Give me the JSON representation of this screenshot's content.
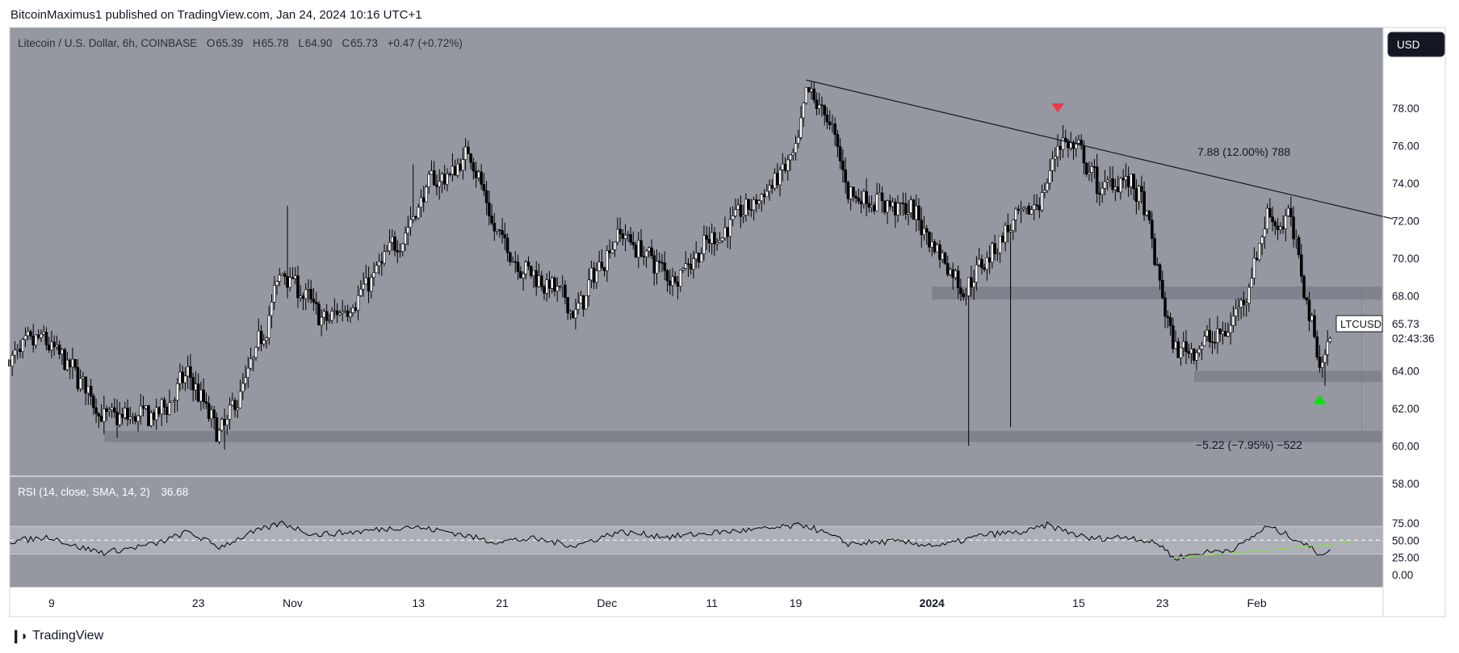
{
  "header": {
    "publisher_line": "BitcoinMaximus1 published on TradingView.com, Jan 24, 2024 10:16 UTC+1"
  },
  "footer": {
    "brand": "TradingView"
  },
  "legend": {
    "symbol": "Litecoin / U.S. Dollar, 6h, COINBASE",
    "o_label": "O",
    "o": "65.39",
    "h_label": "H",
    "h": "65.78",
    "l_label": "L",
    "l": "64.90",
    "c_label": "C",
    "c": "65.73",
    "change": "+0.47 (+0.72%)"
  },
  "currency_button": "USD",
  "last_price": {
    "ticker": "LTCUSD",
    "price": "65.73",
    "countdown": "02:43:36"
  },
  "annotations": {
    "upper_measure": "7.88 (12.00%) 788",
    "lower_measure": "−5.22 (−7.95%) −522"
  },
  "rsi_legend": {
    "label": "RSI (14, close, SMA, 14, 2)",
    "value": "36.68"
  },
  "colors": {
    "chart_bg": "#9598a1",
    "rsi_band": "#aeb0b8",
    "support_zone": "#80838d",
    "candle": "#000000",
    "red_marker": "#f23645",
    "green_marker": "#00e600",
    "rsi_trend": "#8bd85f"
  },
  "chart_data": [
    {
      "type": "candlestick",
      "title": "Litecoin / U.S. Dollar, 6h, COINBASE",
      "ylim": [
        57,
        81
      ],
      "y_ticks": [
        "78.00",
        "76.00",
        "74.00",
        "72.00",
        "70.00",
        "68.00",
        "66.00",
        "64.00",
        "62.00",
        "60.00",
        "58.00"
      ],
      "x_ticks": [
        "9",
        "23",
        "Nov",
        "13",
        "21",
        "Dec",
        "11",
        "19",
        "2024",
        "15",
        "23",
        "Feb"
      ],
      "x_range": [
        "2023-10-05",
        "2024-02-06"
      ],
      "price_anchors": [
        {
          "date": "2023-10-05",
          "price": 64.6
        },
        {
          "date": "2023-10-08",
          "price": 65.7
        },
        {
          "date": "2023-10-12",
          "price": 63.3
        },
        {
          "date": "2023-10-14",
          "price": 61.4
        },
        {
          "date": "2023-10-19",
          "price": 61.6
        },
        {
          "date": "2023-10-22",
          "price": 63.8
        },
        {
          "date": "2023-10-24",
          "price": 61.5
        },
        {
          "date": "2023-10-25",
          "price": 60.5
        },
        {
          "date": "2023-10-28",
          "price": 64.2
        },
        {
          "date": "2023-10-31",
          "price": 69.5
        },
        {
          "date": "2023-11-02",
          "price": 68.0
        },
        {
          "date": "2023-11-04",
          "price": 66.5
        },
        {
          "date": "2023-11-08",
          "price": 68.5
        },
        {
          "date": "2023-11-12",
          "price": 71.8
        },
        {
          "date": "2023-11-14",
          "price": 74.0
        },
        {
          "date": "2023-11-16",
          "price": 74.5
        },
        {
          "date": "2023-11-18",
          "price": 75.8
        },
        {
          "date": "2023-11-20",
          "price": 71.5
        },
        {
          "date": "2023-11-23",
          "price": 69.5
        },
        {
          "date": "2023-11-25",
          "price": 68.8
        },
        {
          "date": "2023-11-28",
          "price": 67.0
        },
        {
          "date": "2023-11-30",
          "price": 69.5
        },
        {
          "date": "2023-12-02",
          "price": 71.5
        },
        {
          "date": "2023-12-05",
          "price": 70.0
        },
        {
          "date": "2023-12-07",
          "price": 69.0
        },
        {
          "date": "2023-12-10",
          "price": 70.5
        },
        {
          "date": "2023-12-13",
          "price": 72.0
        },
        {
          "date": "2023-12-16",
          "price": 73.5
        },
        {
          "date": "2023-12-19",
          "price": 75.5
        },
        {
          "date": "2023-12-20",
          "price": 78.8
        },
        {
          "date": "2023-12-22",
          "price": 77.5
        },
        {
          "date": "2023-12-24",
          "price": 73.5
        },
        {
          "date": "2023-12-27",
          "price": 73.0
        },
        {
          "date": "2023-12-30",
          "price": 72.5
        },
        {
          "date": "2024-01-02",
          "price": 70.0
        },
        {
          "date": "2024-01-04",
          "price": 68.3
        },
        {
          "date": "2024-01-06",
          "price": 70.0
        },
        {
          "date": "2024-01-08",
          "price": 71.5
        },
        {
          "date": "2024-01-10",
          "price": 72.2
        },
        {
          "date": "2024-01-12",
          "price": 74.0
        },
        {
          "date": "2024-01-13",
          "price": 76.5
        },
        {
          "date": "2024-01-15",
          "price": 75.5
        },
        {
          "date": "2024-01-17",
          "price": 73.5
        },
        {
          "date": "2024-01-19",
          "price": 74.5
        },
        {
          "date": "2024-01-21",
          "price": 73.0
        },
        {
          "date": "2024-01-24",
          "price": 65.0
        },
        {
          "date": "2024-01-27",
          "price": 65.5
        },
        {
          "date": "2024-01-29",
          "price": 66.0
        },
        {
          "date": "2024-01-31",
          "price": 68.5
        },
        {
          "date": "2024-02-02",
          "price": 72.5
        },
        {
          "date": "2024-02-03",
          "price": 71.8
        },
        {
          "date": "2024-02-04",
          "price": 72.2
        },
        {
          "date": "2024-02-06",
          "price": 67.0
        },
        {
          "date": "2024-02-07",
          "price": 64.3
        },
        {
          "date": "2024-02-08",
          "price": 65.7
        }
      ],
      "spikes": [
        {
          "date": "2023-10-25",
          "low": 59.8
        },
        {
          "date": "2023-10-31",
          "high": 72.8
        },
        {
          "date": "2023-11-12",
          "high": 75.0
        },
        {
          "date": "2023-12-20",
          "high": 79.4
        },
        {
          "date": "2024-01-04",
          "low": 60.0
        },
        {
          "date": "2024-01-08",
          "low": 61.0
        },
        {
          "date": "2024-01-13",
          "high": 77.1
        },
        {
          "date": "2024-02-07",
          "low": 63.2
        }
      ],
      "support_zones": [
        {
          "from_date": "2023-10-14",
          "low": 60.2,
          "high": 60.8
        },
        {
          "from_date": "2024-01-01",
          "low": 67.8,
          "high": 68.5
        },
        {
          "from_date": "2024-01-26",
          "low": 63.4,
          "high": 64.0
        }
      ],
      "trendline": [
        {
          "date": "2023-12-20",
          "price": 79.5
        },
        {
          "date": "2024-02-14",
          "price": 72.1
        }
      ],
      "markers": [
        {
          "type": "down-triangle",
          "color": "red",
          "date": "2024-01-13",
          "price": 78.0
        },
        {
          "type": "up-triangle",
          "color": "green",
          "date": "2024-02-07",
          "price": 62.5
        }
      ],
      "last_price": 65.73
    },
    {
      "type": "line",
      "title": "RSI (14, close, SMA, 14, 2)",
      "ylim": [
        0,
        80
      ],
      "y_ticks": [
        "75.00",
        "50.00",
        "25.00",
        "0.00"
      ],
      "band": [
        30,
        70
      ],
      "midline": 50,
      "rsi_anchors": [
        {
          "date": "2023-10-05",
          "value": 48
        },
        {
          "date": "2023-10-09",
          "value": 55
        },
        {
          "date": "2023-10-11",
          "value": 42
        },
        {
          "date": "2023-10-14",
          "value": 32
        },
        {
          "date": "2023-10-19",
          "value": 45
        },
        {
          "date": "2023-10-22",
          "value": 62
        },
        {
          "date": "2023-10-25",
          "value": 40
        },
        {
          "date": "2023-10-28",
          "value": 60
        },
        {
          "date": "2023-10-31",
          "value": 75
        },
        {
          "date": "2023-11-03",
          "value": 58
        },
        {
          "date": "2023-11-07",
          "value": 62
        },
        {
          "date": "2023-11-12",
          "value": 70
        },
        {
          "date": "2023-11-16",
          "value": 62
        },
        {
          "date": "2023-11-20",
          "value": 48
        },
        {
          "date": "2023-11-24",
          "value": 52
        },
        {
          "date": "2023-11-28",
          "value": 42
        },
        {
          "date": "2023-12-02",
          "value": 62
        },
        {
          "date": "2023-12-07",
          "value": 55
        },
        {
          "date": "2023-12-12",
          "value": 62
        },
        {
          "date": "2023-12-16",
          "value": 66
        },
        {
          "date": "2023-12-20",
          "value": 72
        },
        {
          "date": "2023-12-24",
          "value": 45
        },
        {
          "date": "2023-12-28",
          "value": 48
        },
        {
          "date": "2024-01-02",
          "value": 42
        },
        {
          "date": "2024-01-06",
          "value": 58
        },
        {
          "date": "2024-01-10",
          "value": 62
        },
        {
          "date": "2024-01-12",
          "value": 72
        },
        {
          "date": "2024-01-16",
          "value": 52
        },
        {
          "date": "2024-01-20",
          "value": 55
        },
        {
          "date": "2024-01-23",
          "value": 42
        },
        {
          "date": "2024-01-24",
          "value": 24
        },
        {
          "date": "2024-01-27",
          "value": 32
        },
        {
          "date": "2024-01-30",
          "value": 38
        },
        {
          "date": "2024-02-02",
          "value": 70
        },
        {
          "date": "2024-02-05",
          "value": 50
        },
        {
          "date": "2024-02-07",
          "value": 30
        },
        {
          "date": "2024-02-08",
          "value": 36.68
        }
      ],
      "trendline": [
        {
          "date": "2024-01-24",
          "value": 24
        },
        {
          "date": "2024-02-10",
          "value": 47
        }
      ],
      "last_value": 36.68
    }
  ]
}
